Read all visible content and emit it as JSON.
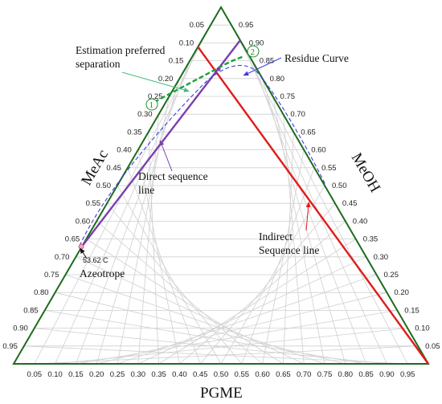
{
  "axes": {
    "bottom": {
      "title": "PGME",
      "ticks": [
        "0.05",
        "0.10",
        "0.15",
        "0.20",
        "0.25",
        "0.30",
        "0.35",
        "0.40",
        "0.45",
        "0.50",
        "0.55",
        "0.60",
        "0.65",
        "0.70",
        "0.75",
        "0.80",
        "0.85",
        "0.90",
        "0.95"
      ]
    },
    "left": {
      "title": "MeAc",
      "ticks": [
        "0.05",
        "0.10",
        "0.15",
        "0.20",
        "0.25",
        "0.30",
        "0.35",
        "0.40",
        "0.45",
        "0.50",
        "0.55",
        "0.60",
        "0.65",
        "0.70",
        "0.75",
        "0.80",
        "0.85",
        "0.90",
        "0.95"
      ]
    },
    "right": {
      "title": "MeOH",
      "ticks": [
        "0.95",
        "0.90",
        "0.85",
        "0.80",
        "0.75",
        "0.70",
        "0.65",
        "0.60",
        "0.55",
        "0.50",
        "0.45",
        "0.40",
        "0.35",
        "0.30",
        "0.25",
        "0.20",
        "0.15",
        "0.10",
        "0.05"
      ]
    }
  },
  "annotations": {
    "estimation_line1": "Estimation preferred",
    "estimation_line2": "separation",
    "residue_curve": "Residue Curve",
    "direct_line1": "Direct sequence",
    "direct_line2": "line",
    "indirect_line1": "Indirect",
    "indirect_line2": "Sequence line",
    "azeotrope_temp": "53.62 C",
    "azeotrope": "Azeotrope",
    "circle1": "1",
    "circle2": "2"
  },
  "colors": {
    "frame": "#1e6b1e",
    "grid": "#cfcfcf",
    "direct": "#7a3fb0",
    "indirect": "#e01b1b",
    "residue": "#3d3de0",
    "estimation": "#1aa23a"
  }
}
